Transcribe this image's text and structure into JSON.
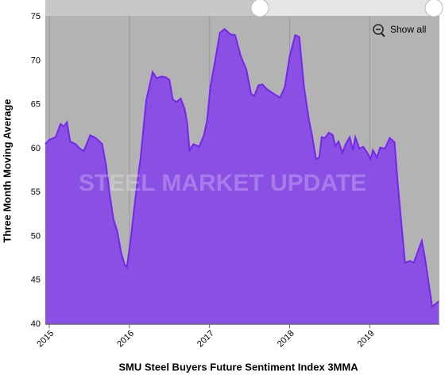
{
  "chart_data": {
    "type": "area",
    "title": "SMU Steel Buyers Future Sentiment Index 3MMA",
    "y_label": "Three Month Moving Average",
    "watermark": "STEEL MARKET UPDATE",
    "button": "Show all",
    "color": "#8a4fe3",
    "line_color": "#7426ee",
    "x": [
      2014.95,
      2015.0,
      2015.08,
      2015.14,
      2015.18,
      2015.22,
      2015.26,
      2015.33,
      2015.38,
      2015.43,
      2015.51,
      2015.58,
      2015.66,
      2015.71,
      2015.75,
      2015.8,
      2015.85,
      2015.9,
      2015.94,
      2015.97,
      2016.02,
      2016.07,
      2016.14,
      2016.21,
      2016.29,
      2016.34,
      2016.4,
      2016.46,
      2016.5,
      2016.54,
      2016.59,
      2016.64,
      2016.69,
      2016.72,
      2016.75,
      2016.8,
      2016.87,
      2016.93,
      2016.97,
      2017.01,
      2017.07,
      2017.13,
      2017.19,
      2017.26,
      2017.32,
      2017.39,
      2017.46,
      2017.52,
      2017.56,
      2017.61,
      2017.66,
      2017.71,
      2017.79,
      2017.88,
      2017.94,
      2018.0,
      2018.07,
      2018.12,
      2018.18,
      2018.24,
      2018.28,
      2018.33,
      2018.37,
      2018.4,
      2018.44,
      2018.49,
      2018.54,
      2018.57,
      2018.61,
      2018.66,
      2018.7,
      2018.75,
      2018.79,
      2018.82,
      2018.87,
      2018.92,
      2018.97,
      2019.01,
      2019.04,
      2019.09,
      2019.13,
      2019.19,
      2019.25,
      2019.31,
      2019.35,
      2019.4,
      2019.44,
      2019.5,
      2019.55,
      2019.59,
      2019.65,
      2019.69,
      2019.73,
      2019.78,
      2019.86
    ],
    "values": [
      60.5,
      61,
      61.3,
      62.8,
      62.5,
      63,
      60.8,
      60.5,
      60,
      59.7,
      61.5,
      61.2,
      60.5,
      58,
      55,
      52,
      50.5,
      48,
      46.8,
      46.5,
      50,
      54,
      59,
      65.5,
      68.7,
      68,
      68.2,
      68.1,
      67.8,
      65.6,
      65.3,
      65.7,
      64.5,
      63,
      59.8,
      60.5,
      60.2,
      61.5,
      63.2,
      67,
      70,
      73.2,
      73.6,
      73,
      72.9,
      70.5,
      69,
      66.2,
      66,
      67.2,
      67.3,
      66.8,
      66.3,
      65.8,
      67,
      70.5,
      72.9,
      72.7,
      67,
      63.3,
      61.5,
      58.8,
      59,
      61.3,
      61.2,
      61.8,
      61.5,
      60.3,
      60.8,
      59.5,
      60.5,
      61.3,
      59.8,
      61.3,
      60,
      60.2,
      59.5,
      58.8,
      59.8,
      59,
      60.1,
      60,
      61.2,
      60.7,
      56,
      51,
      47,
      47.2,
      47,
      48,
      49.5,
      47.5,
      45,
      42,
      42.6
    ],
    "xlim": [
      2014.95,
      2019.87
    ],
    "xticks": [
      2015,
      2016,
      2017,
      2018,
      2019
    ],
    "ylim": [
      40,
      75.1
    ],
    "yticks": [
      40,
      45,
      50,
      55,
      60,
      65,
      70,
      75
    ],
    "grid": true
  }
}
